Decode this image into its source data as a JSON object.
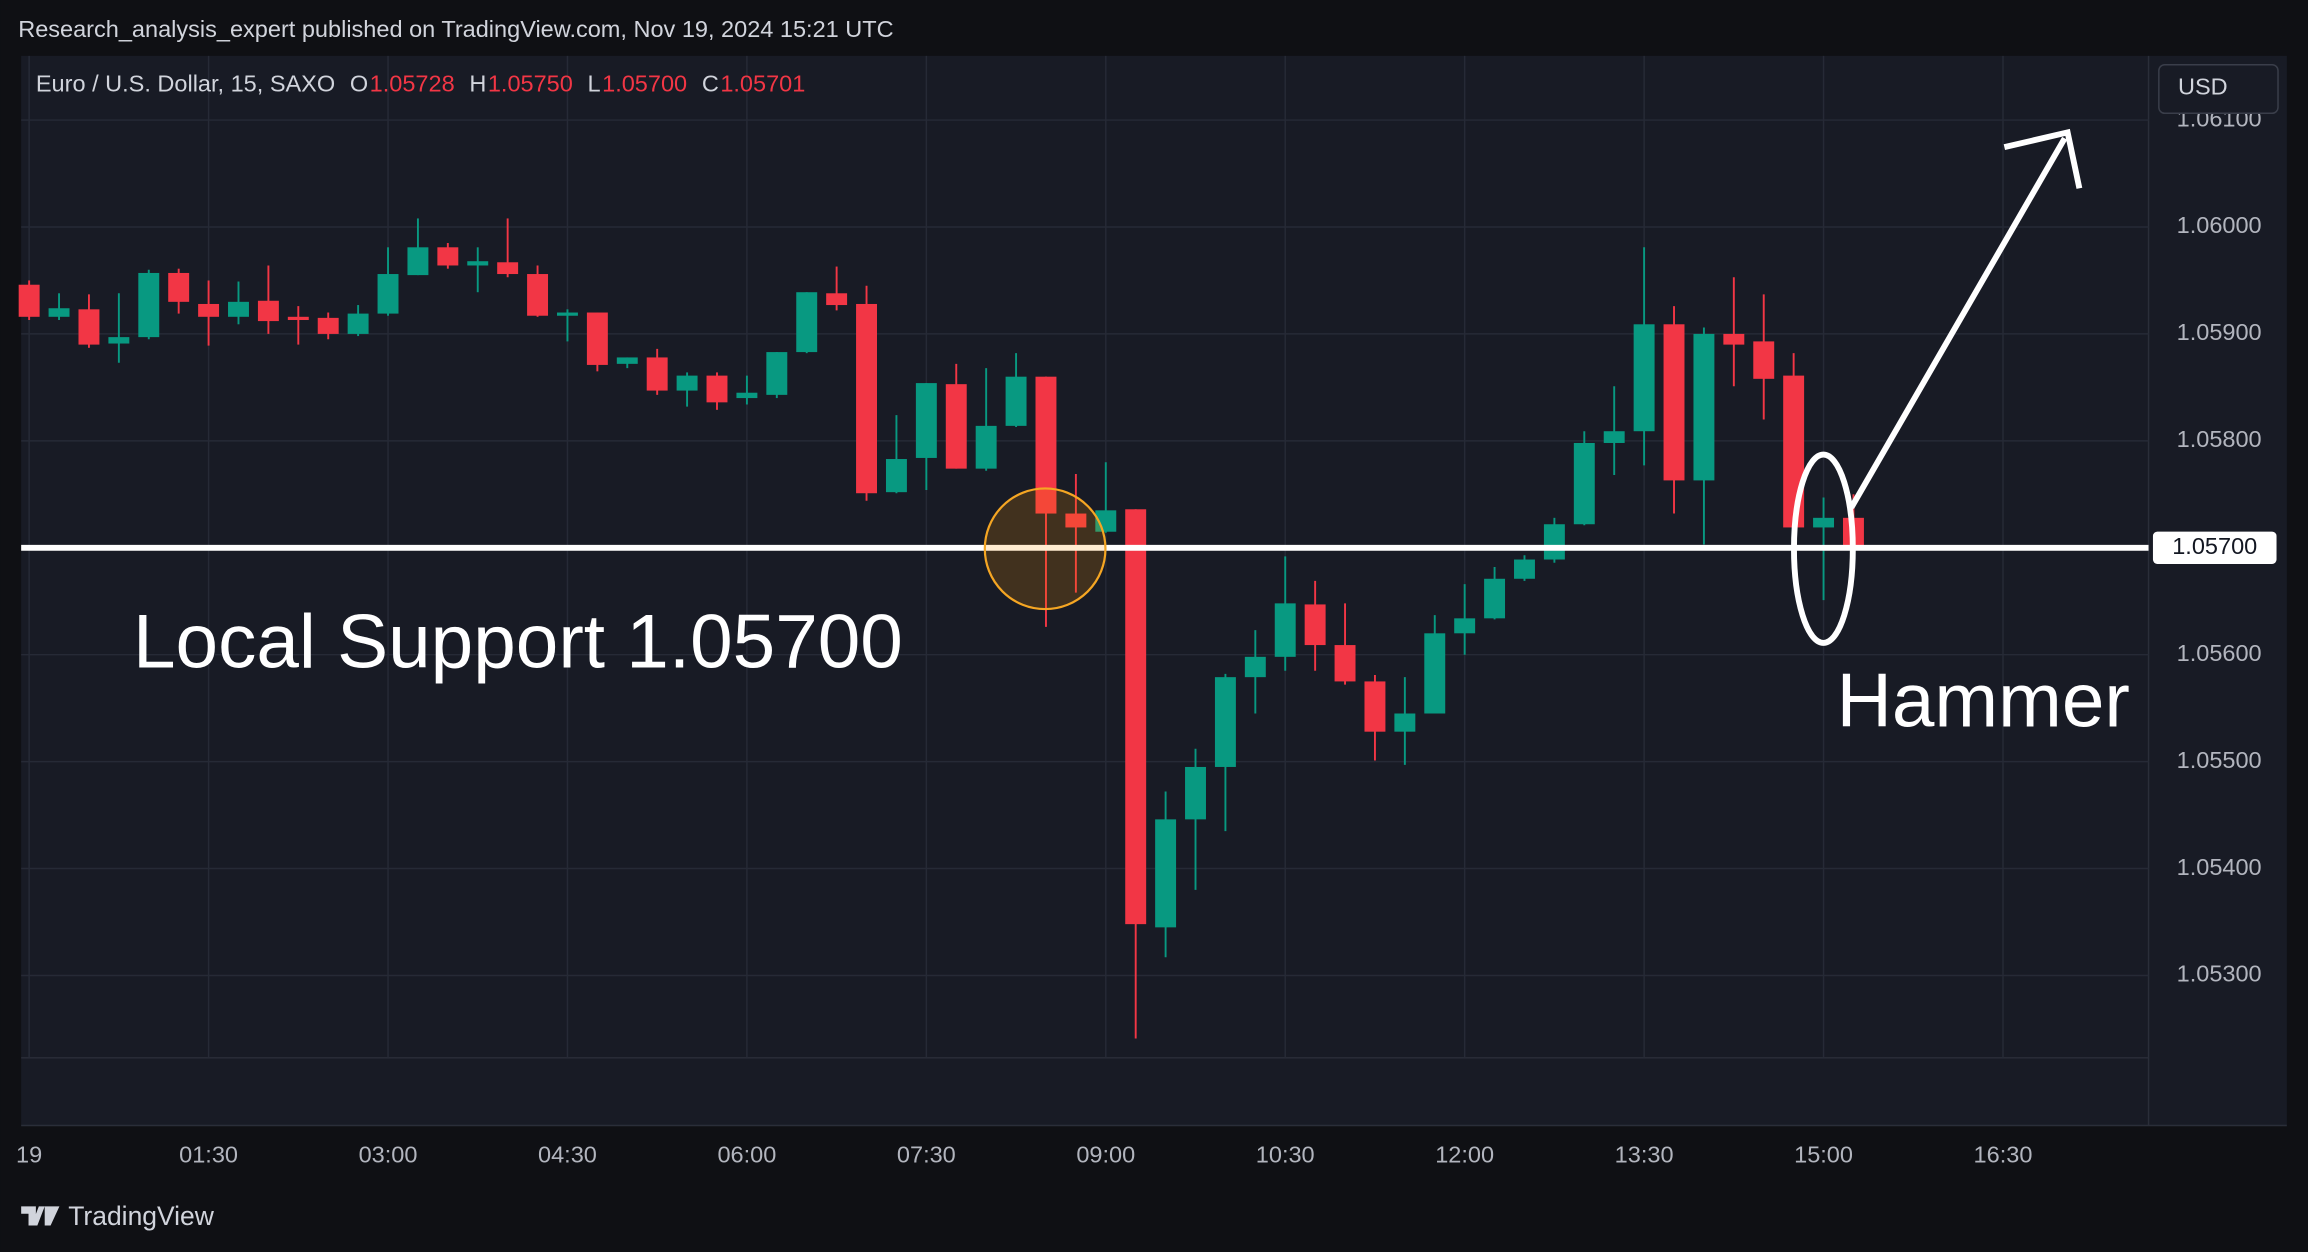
{
  "header": {
    "published": "Research_analysis_expert published on TradingView.com, Nov 19, 2024 15:21 UTC",
    "symbol": "Euro / U.S. Dollar, 15, SAXO",
    "ohlc": [
      {
        "key": "O",
        "value": "1.05728"
      },
      {
        "key": "H",
        "value": "1.05750"
      },
      {
        "key": "L",
        "value": "1.05700"
      },
      {
        "key": "C",
        "value": "1.05701"
      }
    ],
    "currency": "USD"
  },
  "footer": {
    "brand": "TradingView"
  },
  "chart_data": {
    "type": "candlestick",
    "up_color": "#089981",
    "down_color": "#f23645",
    "grid": true,
    "x": [
      0,
      15,
      30,
      45,
      60,
      75,
      90,
      105,
      120,
      135,
      150,
      165,
      180,
      195,
      210,
      225,
      240,
      255,
      270,
      285,
      300,
      315,
      330,
      345,
      360,
      375,
      390,
      405,
      420,
      435,
      450,
      465,
      480,
      495,
      510,
      525,
      540,
      555,
      570,
      585,
      600,
      615,
      630,
      645,
      660,
      675,
      690,
      705,
      720,
      735,
      750,
      765,
      780,
      795,
      810,
      825,
      840,
      855,
      870,
      885,
      900,
      915
    ],
    "open": [
      1.05946,
      1.05916,
      1.05923,
      1.05891,
      1.05897,
      1.05957,
      1.05928,
      1.05916,
      1.05931,
      1.05916,
      1.05915,
      1.059,
      1.05919,
      1.05955,
      1.05981,
      1.05964,
      1.05967,
      1.05956,
      1.05917,
      1.0592,
      1.05872,
      1.05878,
      1.05847,
      1.05861,
      1.0584,
      1.05843,
      1.05883,
      1.05938,
      1.05928,
      1.05752,
      1.05784,
      1.05853,
      1.05774,
      1.05814,
      1.0586,
      1.05732,
      1.05715,
      1.05736,
      1.05345,
      1.05446,
      1.05495,
      1.05579,
      1.05598,
      1.05647,
      1.05609,
      1.05575,
      1.05528,
      1.05545,
      1.0562,
      1.05634,
      1.05671,
      1.05689,
      1.05722,
      1.05798,
      1.05809,
      1.05909,
      1.05763,
      1.059,
      1.05893,
      1.05861,
      1.05719,
      1.05728
    ],
    "high": [
      1.0595,
      1.05938,
      1.05937,
      1.05938,
      1.0596,
      1.05961,
      1.0595,
      1.05949,
      1.05964,
      1.05926,
      1.0592,
      1.05927,
      1.05981,
      1.06008,
      1.05985,
      1.05981,
      1.06008,
      1.05964,
      1.05923,
      1.0592,
      1.05878,
      1.05886,
      1.05864,
      1.05864,
      1.05861,
      1.05883,
      1.05939,
      1.05963,
      1.05945,
      1.05824,
      1.05854,
      1.05872,
      1.05868,
      1.05882,
      1.0586,
      1.05769,
      1.0578,
      1.05736,
      1.05472,
      1.05512,
      1.05582,
      1.05623,
      1.05692,
      1.05669,
      1.05648,
      1.05581,
      1.05579,
      1.05637,
      1.05666,
      1.05682,
      1.05693,
      1.05728,
      1.05809,
      1.05851,
      1.05981,
      1.05926,
      1.05906,
      1.05953,
      1.05937,
      1.05882,
      1.05747,
      1.0575
    ],
    "low": [
      1.05913,
      1.05913,
      1.05887,
      1.05873,
      1.05895,
      1.05919,
      1.05889,
      1.05909,
      1.059,
      1.0589,
      1.05895,
      1.05898,
      1.05917,
      1.05955,
      1.05961,
      1.05939,
      1.05953,
      1.05916,
      1.05893,
      1.05865,
      1.05868,
      1.05843,
      1.05832,
      1.05829,
      1.05834,
      1.0584,
      1.05882,
      1.05922,
      1.05744,
      1.05751,
      1.05754,
      1.05774,
      1.05772,
      1.05813,
      1.05626,
      1.05658,
      1.05714,
      1.05241,
      1.05317,
      1.0538,
      1.05435,
      1.05545,
      1.05585,
      1.05585,
      1.05572,
      1.05501,
      1.05497,
      1.05545,
      1.056,
      1.05633,
      1.05669,
      1.05686,
      1.05721,
      1.05768,
      1.05777,
      1.05732,
      1.05703,
      1.05851,
      1.0582,
      1.05719,
      1.05651,
      1.057
    ],
    "close": [
      1.05916,
      1.05924,
      1.0589,
      1.05897,
      1.05957,
      1.0593,
      1.05916,
      1.0593,
      1.05912,
      1.05913,
      1.059,
      1.05919,
      1.05956,
      1.05981,
      1.05964,
      1.05968,
      1.05956,
      1.05917,
      1.0592,
      1.05871,
      1.05878,
      1.05847,
      1.05861,
      1.05836,
      1.05845,
      1.05883,
      1.05939,
      1.05927,
      1.05751,
      1.05783,
      1.05854,
      1.05774,
      1.05814,
      1.0586,
      1.05732,
      1.05719,
      1.05735,
      1.05348,
      1.05446,
      1.05495,
      1.05579,
      1.05598,
      1.05648,
      1.05609,
      1.05575,
      1.05528,
      1.05545,
      1.0562,
      1.05634,
      1.05671,
      1.05689,
      1.05722,
      1.05798,
      1.05809,
      1.05909,
      1.05763,
      1.059,
      1.0589,
      1.05858,
      1.05719,
      1.05728,
      1.05701
    ],
    "xlim": [
      -4,
      1063
    ],
    "xticks": [
      {
        "value": 0,
        "label": "19"
      },
      {
        "value": 90,
        "label": "01:30"
      },
      {
        "value": 180,
        "label": "03:00"
      },
      {
        "value": 270,
        "label": "04:30"
      },
      {
        "value": 360,
        "label": "06:00"
      },
      {
        "value": 450,
        "label": "07:30"
      },
      {
        "value": 540,
        "label": "09:00"
      },
      {
        "value": 630,
        "label": "10:30"
      },
      {
        "value": 720,
        "label": "12:00"
      },
      {
        "value": 810,
        "label": "13:30"
      },
      {
        "value": 900,
        "label": "15:00"
      },
      {
        "value": 990,
        "label": "16:30"
      }
    ],
    "ylim": [
      1.05223,
      1.0616
    ],
    "yticks": [
      {
        "value": 1.053,
        "label": "1.05300"
      },
      {
        "value": 1.054,
        "label": "1.05400"
      },
      {
        "value": 1.055,
        "label": "1.05500"
      },
      {
        "value": 1.056,
        "label": "1.05600"
      },
      {
        "value": 1.057,
        "label": "1.05700"
      },
      {
        "value": 1.058,
        "label": "1.05800"
      },
      {
        "value": 1.059,
        "label": "1.05900"
      },
      {
        "value": 1.06,
        "label": "1.06000"
      },
      {
        "value": 1.061,
        "label": "1.06100"
      }
    ],
    "support_level": {
      "value": 1.057,
      "label": "1.05700"
    },
    "annotations": {
      "support": "Local Support 1.05700",
      "pattern": "Hammer"
    }
  }
}
